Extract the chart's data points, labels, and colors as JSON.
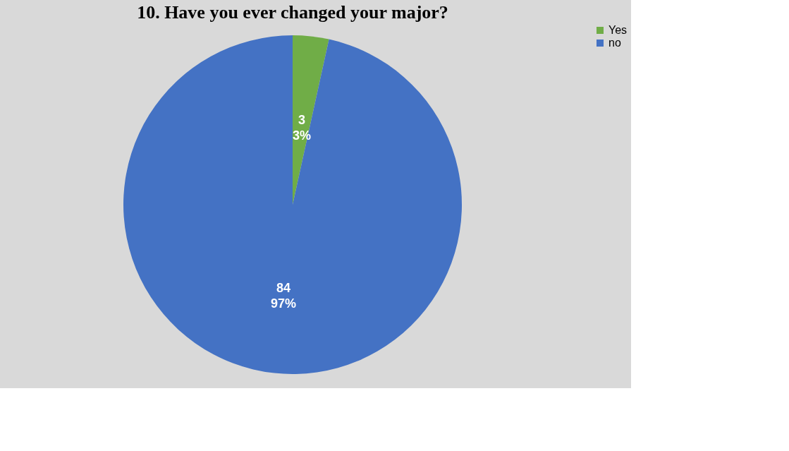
{
  "chart_data": {
    "type": "pie",
    "title": "10. Have you ever changed your major?",
    "categories": [
      "Yes",
      "no"
    ],
    "values": [
      3,
      84
    ],
    "colors": [
      "#70ad47",
      "#4472c4"
    ],
    "value_labels": [
      "3\n3%",
      "84\n97%"
    ],
    "legend": "right"
  }
}
